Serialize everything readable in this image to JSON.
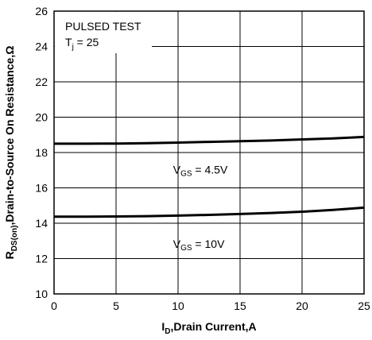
{
  "chart_data": {
    "type": "line",
    "annotation": {
      "line1": "PULSED TEST",
      "line2_main": "T",
      "line2_sub": "j",
      "line2_rest": " = 25"
    },
    "xlabel": {
      "main": "I",
      "sub": "D",
      "rest": ",Drain Current,A"
    },
    "ylabel": {
      "main": "R",
      "sub": "DS(on)",
      "rest": ",Drain-to-Source On Resistance,Ω"
    },
    "xlim": [
      0,
      25
    ],
    "ylim": [
      10,
      26
    ],
    "xticks": [
      0,
      5,
      10,
      15,
      20,
      25
    ],
    "yticks": [
      10,
      12,
      14,
      16,
      18,
      20,
      22,
      24,
      26
    ],
    "grid": true,
    "series": [
      {
        "name_main": "V",
        "name_sub": "GS",
        "name_rest": " = 4.5V",
        "x": [
          0,
          2.5,
          5,
          7.5,
          10,
          12.5,
          15,
          17.5,
          20,
          22.5,
          25
        ],
        "y": [
          18.5,
          18.5,
          18.51,
          18.53,
          18.56,
          18.6,
          18.64,
          18.68,
          18.74,
          18.8,
          18.88
        ]
      },
      {
        "name_main": "V",
        "name_sub": "GS",
        "name_rest": " = 10V",
        "x": [
          0,
          2.5,
          5,
          7.5,
          10,
          12.5,
          15,
          17.5,
          20,
          22.5,
          25
        ],
        "y": [
          14.37,
          14.37,
          14.38,
          14.4,
          14.43,
          14.47,
          14.52,
          14.58,
          14.65,
          14.75,
          14.88
        ]
      }
    ]
  }
}
